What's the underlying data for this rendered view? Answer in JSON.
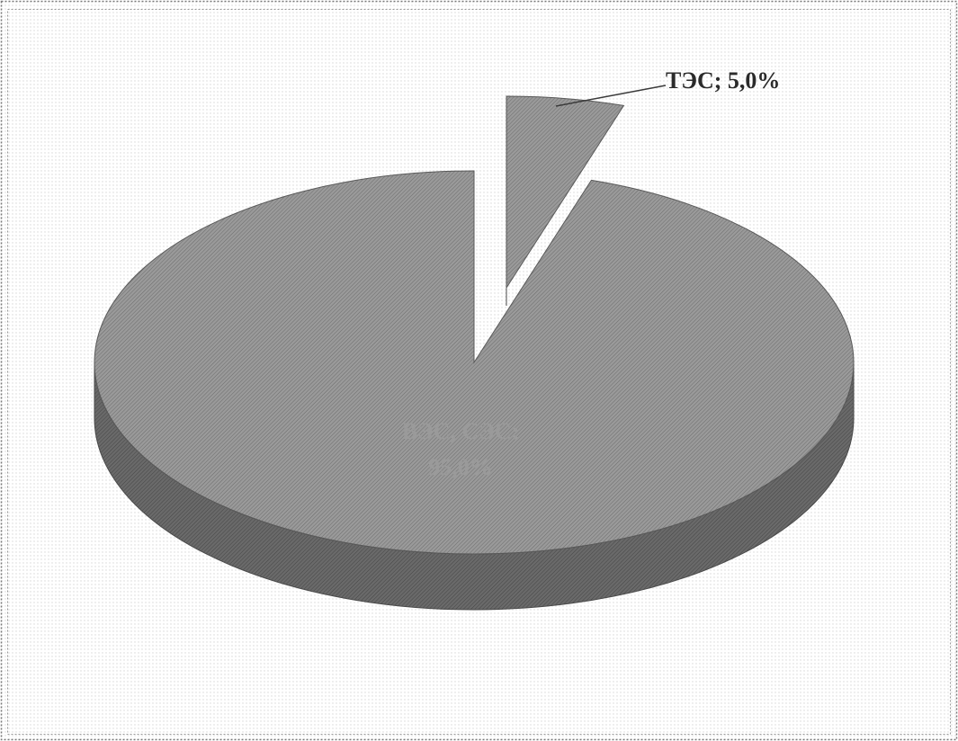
{
  "chart_data": {
    "type": "pie",
    "style": "3d-exploded",
    "slices": [
      {
        "name": "ТЭС",
        "value": 5.0,
        "label": "ТЭС; 5,0%",
        "exploded": true
      },
      {
        "name": "ВЭС, СЭС",
        "value": 95.0,
        "label_line1": "ВЭС, СЭС;",
        "label_line2": "95,0%",
        "exploded": false
      }
    ],
    "colors": {
      "top": "#8c8c8c",
      "side": "#5e5e5e",
      "frame": "#7a7a7a",
      "label": "#2a2a2a"
    }
  }
}
